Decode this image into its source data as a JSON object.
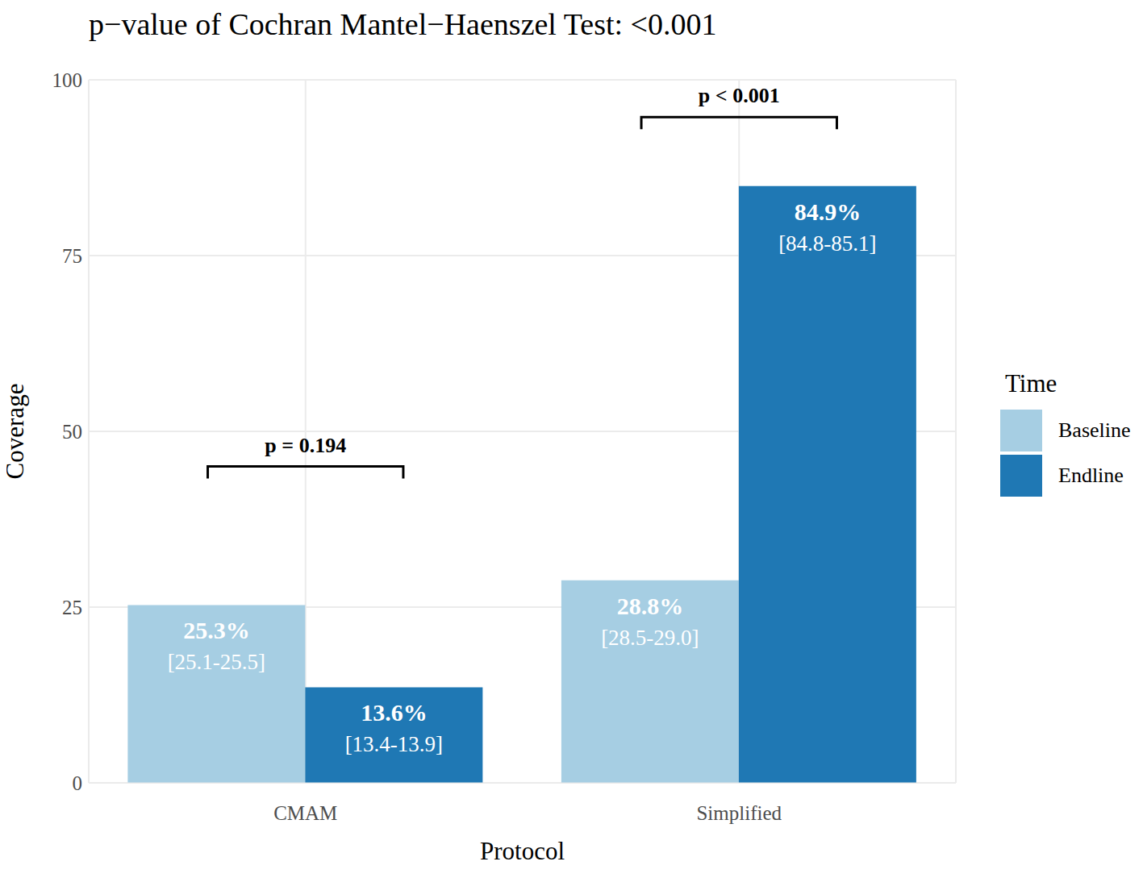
{
  "chart_data": {
    "type": "bar",
    "title": "p−value of Cochran Mantel−Haenszel Test: <0.001",
    "x_label": "Protocol",
    "y_label": "Coverage",
    "legend_title": "Time",
    "legend": "right",
    "categories": [
      "CMAM",
      "Simplified"
    ],
    "series": [
      {
        "name": "Baseline",
        "color": "#a6cee3",
        "values": [
          25.3,
          28.8
        ],
        "value_labels": [
          "25.3%",
          "28.8%"
        ],
        "ci_labels": [
          "[25.1-25.5]",
          "[28.5-29.0]"
        ]
      },
      {
        "name": "Endline",
        "color": "#1f78b4",
        "values": [
          13.6,
          84.9
        ],
        "value_labels": [
          "13.6%",
          "84.9%"
        ],
        "ci_labels": [
          "[13.4-13.9]",
          "[84.8-85.1]"
        ]
      }
    ],
    "ylim": [
      0,
      100
    ],
    "yticks": [
      0,
      25,
      50,
      75,
      100
    ],
    "grid": true,
    "data_labels": true,
    "annotations": [
      {
        "text": "p = 0.194",
        "category": "CMAM",
        "y": 45
      },
      {
        "text": "p < 0.001",
        "category": "Simplified",
        "y": 94.7
      }
    ]
  }
}
